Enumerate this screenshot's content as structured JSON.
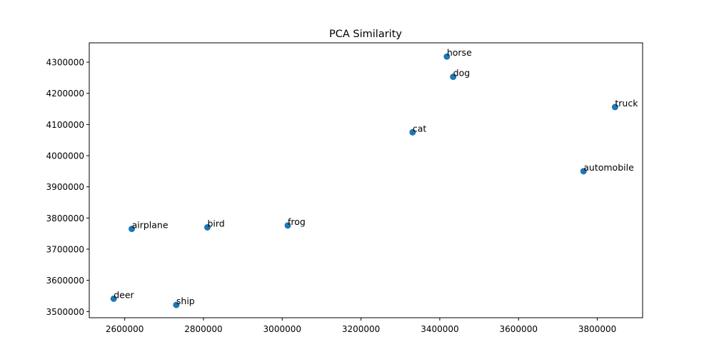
{
  "chart_data": {
    "type": "scatter",
    "title": "PCA Similarity",
    "xlabel": "",
    "ylabel": "",
    "xlim": [
      2510000,
      3915000
    ],
    "ylim": [
      3480000,
      4362000
    ],
    "x_ticks": [
      2600000,
      2800000,
      3000000,
      3200000,
      3400000,
      3600000,
      3800000
    ],
    "y_ticks": [
      3500000,
      3600000,
      3700000,
      3800000,
      3900000,
      4000000,
      4100000,
      4200000,
      4300000
    ],
    "grid": false,
    "marker_color": "#1f77b4",
    "points": [
      {
        "label": "horse",
        "x": 3418000,
        "y": 4318000
      },
      {
        "label": "dog",
        "x": 3434000,
        "y": 4253000
      },
      {
        "label": "truck",
        "x": 3845000,
        "y": 4156000
      },
      {
        "label": "cat",
        "x": 3331000,
        "y": 4075000
      },
      {
        "label": "automobile",
        "x": 3765000,
        "y": 3950000
      },
      {
        "label": "frog",
        "x": 3014000,
        "y": 3776000
      },
      {
        "label": "bird",
        "x": 2810000,
        "y": 3770000
      },
      {
        "label": "airplane",
        "x": 2618000,
        "y": 3765000
      },
      {
        "label": "deer",
        "x": 2572000,
        "y": 3541000
      },
      {
        "label": "ship",
        "x": 2731000,
        "y": 3521000
      }
    ]
  }
}
